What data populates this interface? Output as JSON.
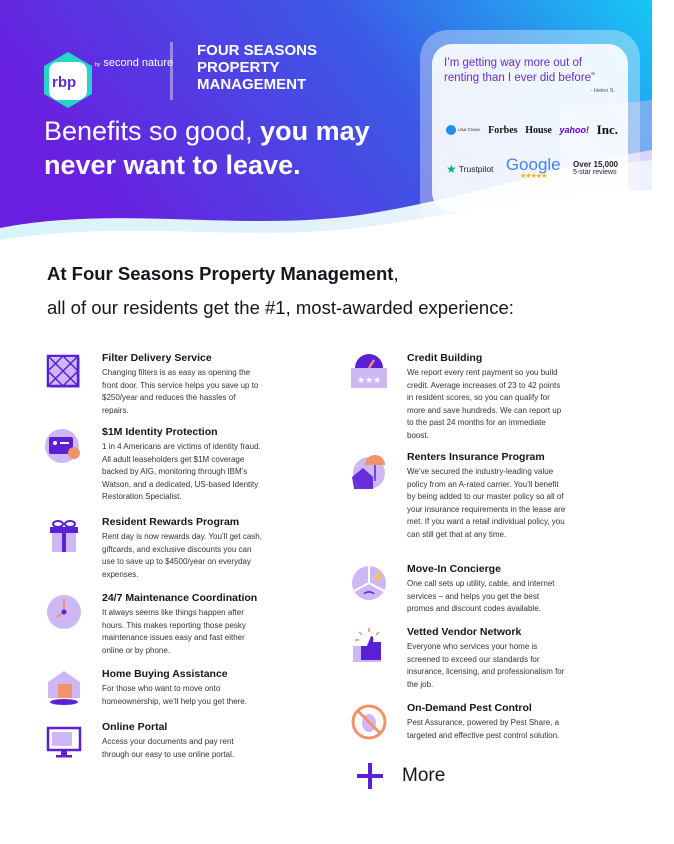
{
  "header": {
    "logo": "rbp",
    "by_label": "by",
    "partner": "second nature",
    "company": "FOUR SEASONS PROPERTY MANAGEMENT",
    "headline_light": "Benefits so good, ",
    "headline_bold": "you may never want to leave.",
    "gradient": [
      "#6a1fe0",
      "#3b5ae6",
      "#17c8f5"
    ]
  },
  "testimonial": {
    "quote": "I’m getting way more out of renting than I ever did before”",
    "author": "- Helen S.",
    "press": [
      "USA TODAY",
      "Forbes",
      "House",
      "yahoo!",
      "Inc."
    ],
    "trustpilot": "Trustpilot",
    "google": "Google",
    "google_stars": "★★★★★",
    "reviews_count": "Over 15,000",
    "reviews_label": "5-star reviews"
  },
  "intro": {
    "company_bold": "At Four Seasons Property Management",
    "line1_rest": ",",
    "line2": "all of our residents get the #1, most-awarded experience:"
  },
  "benefits_left": [
    {
      "title": "Filter Delivery Service",
      "text": "Changing filters is as easy as opening the front door. This service helps you save up to $250/year and reduces the hassles of repairs.",
      "icon": "filter-icon"
    },
    {
      "title": "$1M Identity Protection",
      "text": "1 in 4 Americans are victims of identity fraud. All adult leaseholders get $1M coverage backed by AIG, monitoring through IBM’s Watson, and a dedicated, US-based Identity Restoration Specialist.",
      "icon": "id-card-icon"
    },
    {
      "title": "Resident Rewards Program",
      "text": "Rent day is now rewards day. You’ll get cash, giftcards, and exclusive discounts you can use to save up to $4500/year on everyday expenses.",
      "icon": "gift-icon"
    },
    {
      "title": "24/7 Maintenance Coordination",
      "text": "It always seems like things happen after hours. This makes reporting those pesky maintenance issues easy and fast either online or by phone.",
      "icon": "clock-icon"
    },
    {
      "title": "Home Buying Assistance",
      "text": "For those who want to move onto homeownership, we’ll help you get there.",
      "icon": "house-calendar-icon"
    },
    {
      "title": "Online Portal",
      "text": "Access your documents and pay rent through our easy to use online portal.",
      "icon": "monitor-icon"
    }
  ],
  "benefits_right": [
    {
      "title": "Credit Building",
      "text": "We report every rent payment so you build credit. Average increases of 23 to 42 points in resident scores, so you can qualify for more and save hundreds. We can report up to the past 24 months for an immediate boost.",
      "icon": "gauge-icon"
    },
    {
      "title": "Renters Insurance Program",
      "text": "We’ve secured the industry-leading value policy from an A-rated carrier. You’ll benefit by being added to our master policy so all of your insurance requirements in the lease are met. If you want a retail individual policy, you can still get that at any time.",
      "icon": "umbrella-house-icon"
    },
    {
      "title": "Move-In Concierge",
      "text": "One call sets up utility, cable, and internet services – and helps you get the best promos and discount codes available.",
      "icon": "utilities-icon"
    },
    {
      "title": "Vetted Vendor Network",
      "text": "Everyone who services your home is screened to exceed our standards for insurance, licensing, and professionalism for the job.",
      "icon": "thumbs-up-icon"
    },
    {
      "title": "On-Demand Pest Control",
      "text": "Pest Assurance, powered by Pest Share, a targeted and effective pest control solution.",
      "icon": "no-bug-icon"
    }
  ],
  "more_label": "More",
  "colors": {
    "purple": "#5b1fd6",
    "lavender": "#cdb8f5",
    "orange": "#f2926a"
  }
}
